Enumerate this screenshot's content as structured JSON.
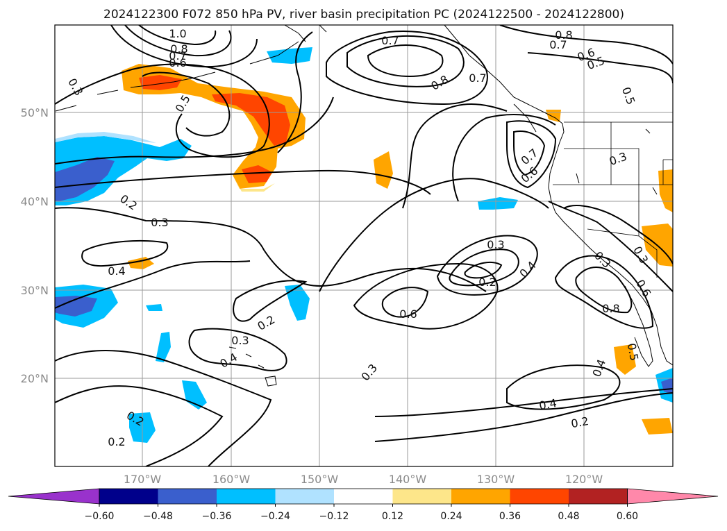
{
  "title": "2024122300 F072 850 hPa PV, river basin precipitation PC (2024122500 - 2024122800)",
  "lat_labels": [
    "50°N",
    "40°N",
    "30°N",
    "20°N"
  ],
  "lon_labels": [
    "170°W",
    "160°W",
    "150°W",
    "140°W",
    "130°W",
    "120°W"
  ],
  "contour_labels": [
    "1.0",
    "0.8",
    "0.7",
    "0.6",
    "0.3",
    "0.5",
    "0.2",
    "0.3",
    "0.4",
    "0.7",
    "0.8",
    "0.8",
    "0.7",
    "0.6",
    "0.5",
    "0.5",
    "0.7",
    "0.6",
    "0.3",
    "0.3",
    "0.2",
    "0.4",
    "0.6",
    "0.2",
    "0.3",
    "0.4",
    "0.3",
    "0.2",
    "0.2",
    "0.4",
    "0.2",
    "0.3",
    "0.8",
    "0.4",
    "0.5",
    "0.3",
    "0.6",
    "0.7"
  ],
  "colorbar": {
    "ticks": [
      "−0.60",
      "−0.48",
      "−0.36",
      "−0.24",
      "−0.12",
      "0.12",
      "0.24",
      "0.36",
      "0.48",
      "0.60"
    ],
    "colors": [
      "#9932cc",
      "#00008b",
      "#3a5fcd",
      "#00bfff",
      "#b0e2ff",
      "#ffffff",
      "#fde68a",
      "#ffa500",
      "#ff4500",
      "#b22222",
      "#ff88aa"
    ]
  }
}
